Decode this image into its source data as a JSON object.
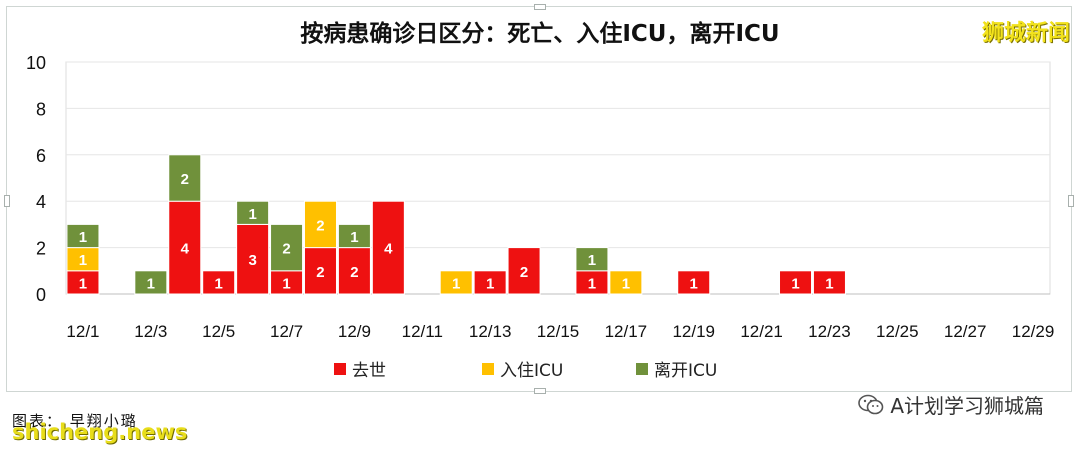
{
  "brand": "狮城新闻",
  "source_label": "图表： 早翔小璐",
  "watermark_left": "shicheng.news",
  "watermark_right": "A计划学习狮城篇",
  "colors": {
    "death": "#ee1111",
    "icu_in": "#ffc000",
    "icu_out": "#70913b",
    "grid": "#e6e6e6"
  },
  "chart_data": {
    "type": "bar",
    "stacked": true,
    "title": "按病患确诊日区分：死亡、入住ICU，离开ICU",
    "xlabel": "",
    "ylabel": "",
    "ylim": [
      0,
      10
    ],
    "yticks": [
      0,
      2,
      4,
      6,
      8,
      10
    ],
    "grid": true,
    "legend_position": "bottom",
    "categories": [
      "12/1",
      "12/2",
      "12/3",
      "12/4",
      "12/5",
      "12/6",
      "12/7",
      "12/8",
      "12/9",
      "12/10",
      "12/11",
      "12/12",
      "12/13",
      "12/14",
      "12/15",
      "12/16",
      "12/17",
      "12/18",
      "12/19",
      "12/20",
      "12/21",
      "12/22",
      "12/23",
      "12/24",
      "12/25",
      "12/26",
      "12/27",
      "12/28",
      "12/29"
    ],
    "xtick_labels": [
      "12/1",
      "12/3",
      "12/5",
      "12/7",
      "12/9",
      "12/11",
      "12/13",
      "12/15",
      "12/17",
      "12/19",
      "12/21",
      "12/23",
      "12/25",
      "12/27",
      "12/29"
    ],
    "series": [
      {
        "name": "去世",
        "color": "#ee1111",
        "values": [
          1,
          0,
          0,
          4,
          1,
          3,
          1,
          2,
          2,
          4,
          0,
          0,
          1,
          2,
          0,
          1,
          0,
          0,
          1,
          0,
          0,
          1,
          1,
          0,
          0,
          0,
          0,
          0,
          0
        ]
      },
      {
        "name": "入住ICU",
        "color": "#ffc000",
        "values": [
          1,
          0,
          0,
          0,
          0,
          0,
          0,
          2,
          0,
          0,
          0,
          1,
          0,
          0,
          0,
          0,
          1,
          0,
          0,
          0,
          0,
          0,
          0,
          0,
          0,
          0,
          0,
          0,
          0
        ]
      },
      {
        "name": "离开ICU",
        "color": "#70913b",
        "values": [
          1,
          0,
          1,
          2,
          0,
          1,
          2,
          0,
          1,
          0,
          0,
          0,
          0,
          0,
          0,
          1,
          0,
          0,
          0,
          0,
          0,
          0,
          0,
          0,
          0,
          0,
          0,
          0,
          0
        ]
      }
    ]
  }
}
